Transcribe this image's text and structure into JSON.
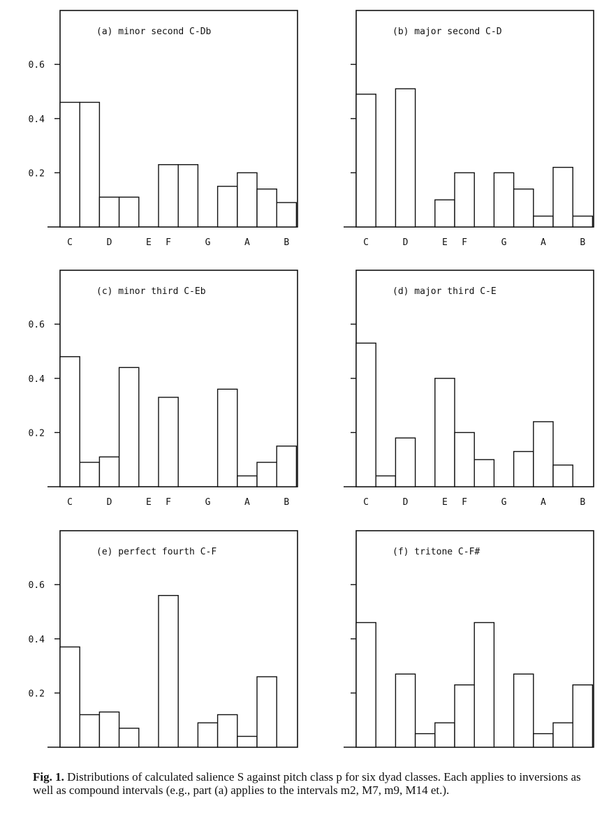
{
  "chart_data": [
    {
      "type": "bar",
      "title": "(a) minor second C-Db",
      "categories": [
        "C",
        "C#",
        "D",
        "D#",
        "E",
        "F",
        "F#",
        "G",
        "G#",
        "A",
        "A#",
        "B"
      ],
      "values": [
        0.46,
        0.46,
        0.11,
        0.11,
        0,
        0.23,
        0.23,
        0,
        0.15,
        0.2,
        0.14,
        0.09
      ],
      "category_labels": [
        "C",
        "",
        "D",
        "",
        "E",
        "F",
        "",
        "G",
        "",
        "A",
        "",
        "B"
      ],
      "yticks": [
        "0.2",
        "0.4",
        "0.6"
      ],
      "ylim": [
        0,
        0.8
      ]
    },
    {
      "type": "bar",
      "title": "(b) major second C-D",
      "categories": [
        "C",
        "C#",
        "D",
        "D#",
        "E",
        "F",
        "F#",
        "G",
        "G#",
        "A",
        "A#",
        "B"
      ],
      "values": [
        0.49,
        0,
        0.51,
        0,
        0.1,
        0.2,
        0,
        0.2,
        0.14,
        0.04,
        0.22,
        0.04
      ],
      "category_labels": [
        "C",
        "",
        "D",
        "",
        "E",
        "F",
        "",
        "G",
        "",
        "A",
        "",
        "B"
      ],
      "yticks": [],
      "ylim": [
        0,
        0.8
      ]
    },
    {
      "type": "bar",
      "title": "(c) minor third C-Eb",
      "categories": [
        "C",
        "C#",
        "D",
        "D#",
        "E",
        "F",
        "F#",
        "G",
        "G#",
        "A",
        "A#",
        "B"
      ],
      "values": [
        0.48,
        0.09,
        0.11,
        0.44,
        0,
        0.33,
        0,
        0,
        0.36,
        0.04,
        0.09,
        0.15
      ],
      "category_labels": [
        "C",
        "",
        "D",
        "",
        "E",
        "F",
        "",
        "G",
        "",
        "A",
        "",
        "B"
      ],
      "yticks": [
        "0.2",
        "0.4",
        "0.6"
      ],
      "ylim": [
        0,
        0.8
      ]
    },
    {
      "type": "bar",
      "title": "(d) major third C-E",
      "categories": [
        "C",
        "C#",
        "D",
        "D#",
        "E",
        "F",
        "F#",
        "G",
        "G#",
        "A",
        "A#",
        "B"
      ],
      "values": [
        0.53,
        0.04,
        0.18,
        0,
        0.4,
        0.2,
        0.1,
        0,
        0.13,
        0.24,
        0.08,
        0
      ],
      "category_labels": [
        "C",
        "",
        "D",
        "",
        "E",
        "F",
        "",
        "G",
        "",
        "A",
        "",
        "B"
      ],
      "yticks": [],
      "ylim": [
        0,
        0.8
      ]
    },
    {
      "type": "bar",
      "title": "(e) perfect fourth C-F",
      "categories": [
        "C",
        "C#",
        "D",
        "D#",
        "E",
        "F",
        "F#",
        "G",
        "G#",
        "A",
        "A#",
        "B"
      ],
      "values": [
        0.37,
        0.12,
        0.13,
        0.07,
        0,
        0.56,
        0,
        0.09,
        0.12,
        0.04,
        0.26,
        0
      ],
      "category_labels": [
        "C",
        "",
        "D",
        "",
        "E",
        "F",
        "",
        "G",
        "",
        "A",
        "",
        "B"
      ],
      "yticks": [
        "0.2",
        "0.4",
        "0.6"
      ],
      "ylim": [
        0,
        0.8
      ]
    },
    {
      "type": "bar",
      "title": "(f) tritone C-F#",
      "categories": [
        "C",
        "C#",
        "D",
        "D#",
        "E",
        "F",
        "F#",
        "G",
        "G#",
        "A",
        "A#",
        "B"
      ],
      "values": [
        0.46,
        0,
        0.27,
        0.05,
        0.09,
        0.23,
        0.46,
        0,
        0.27,
        0.05,
        0.09,
        0.23
      ],
      "category_labels": [
        "C",
        "",
        "D",
        "",
        "E",
        "F",
        "",
        "G",
        "",
        "A",
        "",
        "B"
      ],
      "yticks": [],
      "ylim": [
        0,
        0.8
      ]
    }
  ],
  "caption": {
    "label": "Fig. 1.",
    "text": " Distributions of calculated salience S against pitch class p for six dyad classes. Each applies to inversions as well as compound intervals (e.g., part (a) applies to the intervals m2, M7, m9, M14 et.)."
  }
}
